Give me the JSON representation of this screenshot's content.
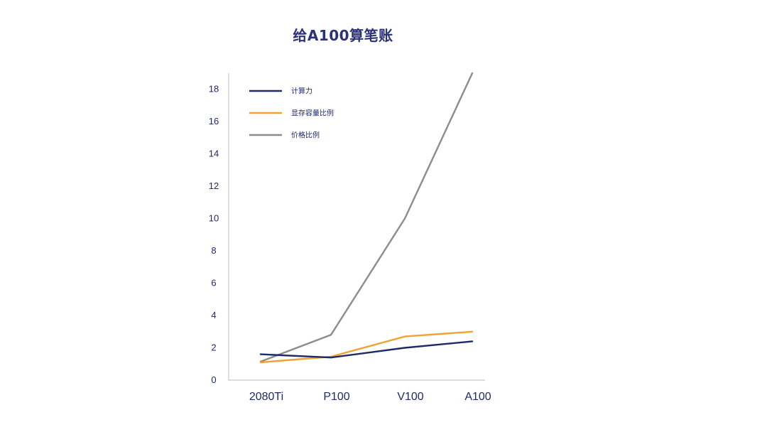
{
  "chart_data": {
    "type": "line",
    "title": "给A100算笔账",
    "xlabel": "",
    "ylabel": "",
    "categories": [
      "2080Ti",
      "P100",
      "V100",
      "A100"
    ],
    "yticks": [
      "0",
      "2",
      "4",
      "6",
      "8",
      "10",
      "12",
      "14",
      "16",
      "18"
    ],
    "ylim": [
      0,
      19
    ],
    "grid": false,
    "legend_position": "top-left",
    "series": [
      {
        "name": "计算力",
        "color": "#1e2a69",
        "values": [
          1.6,
          1.4,
          2.0,
          2.4
        ]
      },
      {
        "name": "显存容量比例",
        "color": "#f0a330",
        "values": [
          1.1,
          1.45,
          2.7,
          3.0
        ]
      },
      {
        "name": "价格比例",
        "color": "#8c8c8c",
        "values": [
          1.15,
          2.8,
          10.0,
          19.0
        ]
      }
    ]
  }
}
